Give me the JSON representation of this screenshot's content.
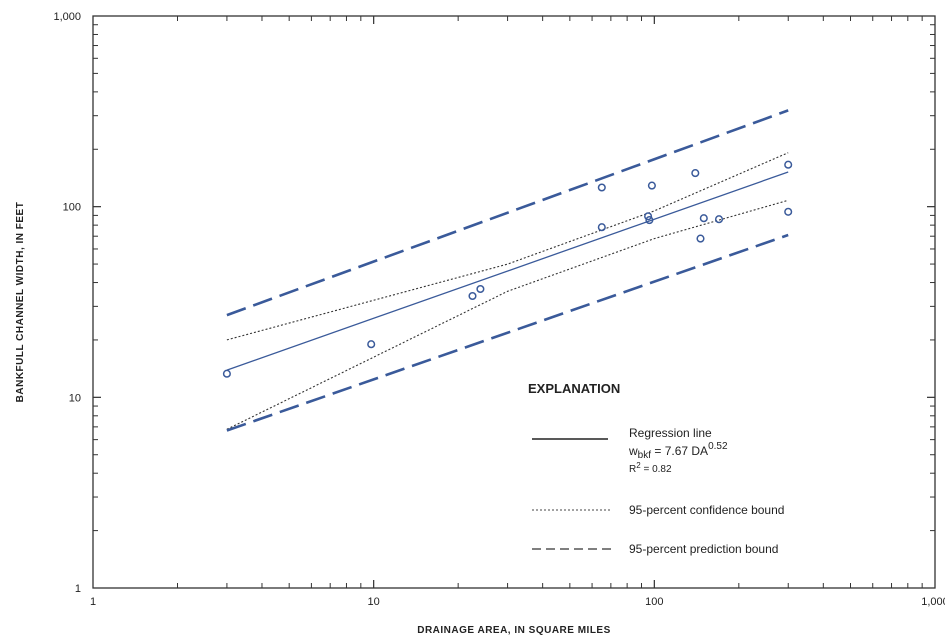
{
  "chart_data": {
    "type": "scatter",
    "title": "",
    "xlabel": "DRAINAGE AREA, IN SQUARE MILES",
    "ylabel": "BANKFULL CHANNEL WIDTH, IN FEET",
    "x_scale": "log",
    "y_scale": "log",
    "xlim": [
      1,
      1000
    ],
    "ylim": [
      1,
      1000
    ],
    "x_ticks": [
      1,
      10,
      100,
      1000
    ],
    "x_tick_labels": [
      "1",
      "10",
      "100",
      "1,000"
    ],
    "y_ticks": [
      1,
      10,
      100,
      1000
    ],
    "y_tick_labels": [
      "1",
      "10",
      "100",
      "1,000"
    ],
    "grid": false,
    "colors": {
      "points": "#3a5a9a",
      "regression": "#3a5a9a",
      "confidence": "#333333",
      "prediction": "#3a5a9a"
    },
    "points": {
      "x": [
        3.0,
        9.8,
        22.5,
        24.0,
        65,
        65,
        96,
        95,
        98,
        140,
        146,
        150,
        170,
        300,
        300
      ],
      "y": [
        13.3,
        19.0,
        34.0,
        37.0,
        126,
        78,
        85,
        89,
        129,
        150,
        68,
        87,
        86,
        166,
        94
      ]
    },
    "series": [
      {
        "style": "solid",
        "x": [
          3,
          300
        ],
        "y": [
          13.9,
          152
        ]
      },
      {
        "style": "dotted",
        "x": [
          3,
          30,
          100,
          300
        ],
        "y": [
          20,
          50,
          95,
          192
        ]
      },
      {
        "style": "dotted",
        "x": [
          3,
          30,
          100,
          300
        ],
        "y": [
          6.8,
          36,
          68,
          108
        ]
      },
      {
        "style": "dashed",
        "x": [
          3,
          300
        ],
        "y": [
          27,
          320
        ]
      },
      {
        "style": "dashed",
        "x": [
          3,
          300
        ],
        "y": [
          6.7,
          71
        ]
      }
    ],
    "legend": {
      "title": "EXPLANATION",
      "placement": "lower-right",
      "regression_label": "Regression line",
      "equation_prefix": "w",
      "equation_subscript": "bkf",
      "equation_mid": " = 7.67 DA",
      "equation_exponent": "0.52",
      "r2_prefix": "R",
      "r2_exponent": "2",
      "r2_value": " = 0.82",
      "confidence_label": "95-percent confidence bound",
      "prediction_label": "95-percent prediction bound"
    }
  }
}
